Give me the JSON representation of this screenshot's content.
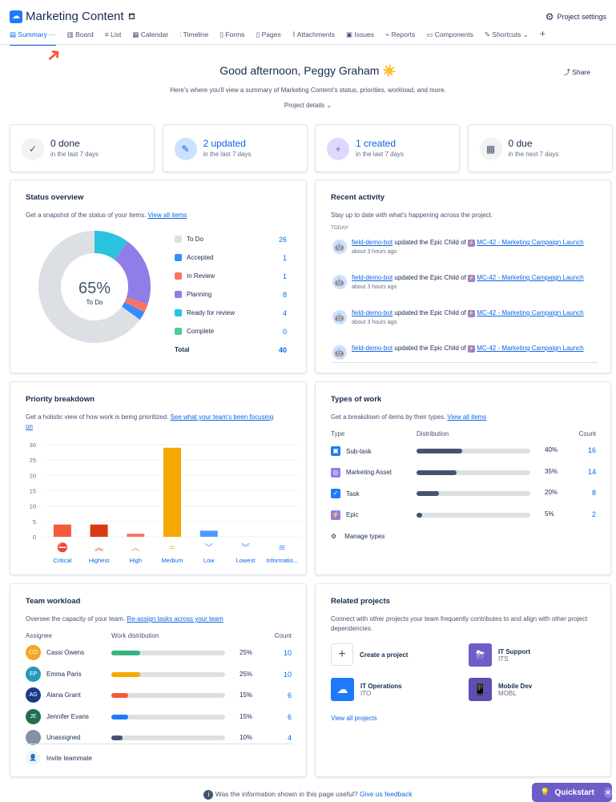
{
  "header": {
    "title": "Marketing Content",
    "settings": "Project settings"
  },
  "tabs": [
    "Summary",
    "Board",
    "List",
    "Calendar",
    "Timeline",
    "Forms",
    "Pages",
    "Attachments",
    "Issues",
    "Reports",
    "Components",
    "Shortcuts"
  ],
  "greeting": "Good afternoon, Peggy Graham ☀️",
  "share": "Share",
  "intro": "Here's where you'll view a summary of Marketing Content's status, priorities, workload, and more.",
  "project_details": "Project details",
  "stats": [
    {
      "big": "0 done",
      "small": "in the last 7 days",
      "icon": "check-icon",
      "bg": "#f1f2f4",
      "fg": "#44546f",
      "color": "#172b4d"
    },
    {
      "big": "2 updated",
      "small": "in the last 7 days",
      "icon": "pencil-icon",
      "bg": "#cce0ff",
      "fg": "#0c66e4",
      "color": "#0c66e4"
    },
    {
      "big": "1 created",
      "small": "in the last 7 days",
      "icon": "plus-icon",
      "bg": "#dfd8fd",
      "fg": "#6e5dc6",
      "color": "#0c66e4"
    },
    {
      "big": "0 due",
      "small": "in the next 7 days",
      "icon": "calendar-icon",
      "bg": "#f1f2f4",
      "fg": "#44546f",
      "color": "#172b4d"
    }
  ],
  "status": {
    "title": "Status overview",
    "subtitle": "Get a snapshot of the status of your items.",
    "link": "View all items",
    "center_pct": "65%",
    "center_label": "To Do",
    "items": [
      {
        "label": "To Do",
        "count": 26,
        "color": "#dcdfe4"
      },
      {
        "label": "Accepted",
        "count": 1,
        "color": "#388bff"
      },
      {
        "label": "In Review",
        "count": 1,
        "color": "#f87462"
      },
      {
        "label": "Planning",
        "count": 8,
        "color": "#8f7ee7"
      },
      {
        "label": "Ready for review",
        "count": 4,
        "color": "#2ac3de"
      },
      {
        "label": "Complete",
        "count": 0,
        "color": "#4bce97"
      }
    ],
    "total_label": "Total",
    "total": 40
  },
  "activity": {
    "title": "Recent activity",
    "subtitle": "Stay up to date with what's happening across the project.",
    "today": "TODAY",
    "items": [
      {
        "user": "field-demo-bot",
        "action": "updated the Epic Child of",
        "issue": "MC-42 - Marketing Campaign Launch",
        "time": "about 3 hours ago"
      },
      {
        "user": "field-demo-bot",
        "action": "updated the Epic Child of",
        "issue": "MC-42 - Marketing Campaign Launch",
        "time": "about 3 hours ago"
      },
      {
        "user": "field-demo-bot",
        "action": "updated the Epic Child of",
        "issue": "MC-42 - Marketing Campaign Launch",
        "time": "about 3 hours ago"
      },
      {
        "user": "field-demo-bot",
        "action": "updated the Epic Child of",
        "issue": "MC-42 - Marketing Campaign Launch",
        "time": ""
      }
    ]
  },
  "priority": {
    "title": "Priority breakdown",
    "subtitle": "Get a holistic view of how work is being prioritized.",
    "link": "See what your team's been focusing on"
  },
  "chart_data": {
    "type": "bar",
    "title": "Priority breakdown",
    "categories": [
      "Critical",
      "Highest",
      "High",
      "Medium",
      "Low",
      "Lowest",
      "Informatio..."
    ],
    "values": [
      4,
      4,
      1,
      29,
      2,
      0,
      0
    ],
    "colors": [
      "#f15b3a",
      "#d93a14",
      "#f87462",
      "#f5a800",
      "#4c9aff",
      "#4c9aff",
      "#4c9aff"
    ],
    "icons": [
      "⛔",
      "︽",
      "︿",
      "=",
      "﹀",
      "︾",
      "≋"
    ],
    "yticks": [
      0,
      5,
      10,
      15,
      20,
      25,
      30
    ],
    "ylim": [
      0,
      30
    ]
  },
  "types": {
    "title": "Types of work",
    "subtitle": "Get a breakdown of items by their types.",
    "link": "View all items",
    "col_type": "Type",
    "col_dist": "Distribution",
    "col_count": "Count",
    "items": [
      {
        "label": "Sub-task",
        "pct": 40,
        "pct_label": "40%",
        "count": 16,
        "color": "#1d7afc"
      },
      {
        "label": "Marketing Asset",
        "pct": 35,
        "pct_label": "35%",
        "count": 14,
        "color": "#8f7ee7"
      },
      {
        "label": "Task",
        "pct": 20,
        "pct_label": "20%",
        "count": 8,
        "color": "#1d7afc"
      },
      {
        "label": "Epic",
        "pct": 5,
        "pct_label": "5%",
        "count": 2,
        "color": "#8f7ee7"
      }
    ],
    "manage": "Manage types"
  },
  "workload": {
    "title": "Team workload",
    "subtitle": "Oversee the capacity of your team.",
    "link": "Re-assign tasks across your team",
    "col_assignee": "Assignee",
    "col_dist": "Work distribution",
    "col_count": "Count",
    "items": [
      {
        "initials": "CO",
        "name": "Cassi Owens",
        "pct": 25,
        "pct_label": "25%",
        "count": 10,
        "avatar": "#f5a623",
        "color": "#36b37e"
      },
      {
        "initials": "EP",
        "name": "Emma Paris",
        "pct": 25,
        "pct_label": "25%",
        "count": 10,
        "avatar": "#2898bd",
        "color": "#f5a800"
      },
      {
        "initials": "AG",
        "name": "Alana Grant",
        "pct": 15,
        "pct_label": "15%",
        "count": 6,
        "avatar": "#1d3a8a",
        "color": "#f15b3a"
      },
      {
        "initials": "JE",
        "name": "Jennifer Evans",
        "pct": 15,
        "pct_label": "15%",
        "count": 6,
        "avatar": "#216e4e",
        "color": "#1d7afc"
      },
      {
        "initials": "",
        "name": "Unassigned",
        "pct": 10,
        "pct_label": "10%",
        "count": 4,
        "avatar": "#8590a2",
        "color": "#44546f"
      }
    ],
    "invite": "Invite teammate"
  },
  "related": {
    "title": "Related projects",
    "subtitle": "Connect with other projects your team frequently contributes to and align with other project dependencies.",
    "create": "Create a project",
    "projects": [
      {
        "name": "IT Support",
        "key": "ITS",
        "color": "#6e5dc6"
      },
      {
        "name": "IT Operations",
        "key": "ITO",
        "color": "#1d7afc"
      },
      {
        "name": "Mobile Dev",
        "key": "MOBL",
        "color": "#5e4db2"
      }
    ],
    "view_all": "View all projects"
  },
  "footer": {
    "question": "Was the information shown in this page useful?",
    "link": "Give us feedback",
    "quickstart": "Quickstart"
  }
}
